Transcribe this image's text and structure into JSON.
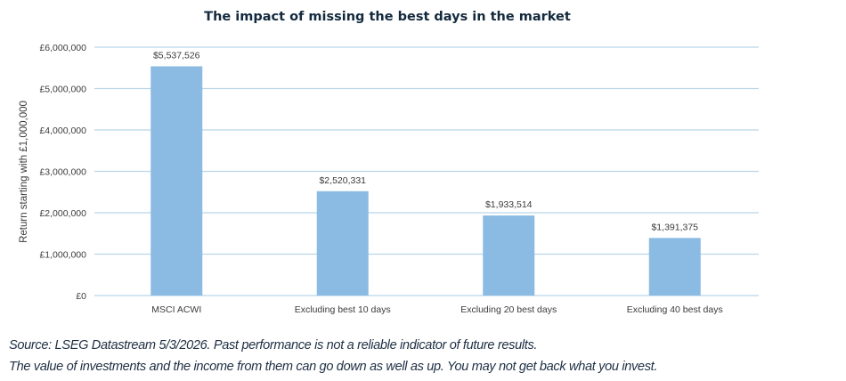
{
  "chart_data": {
    "type": "bar",
    "title": "The impact of missing the best days in the market",
    "xlabel": "",
    "ylabel": "Return starting with £1,000,000",
    "ylim": [
      0,
      6000000
    ],
    "grid": true,
    "yticks": [
      0,
      1000000,
      2000000,
      3000000,
      4000000,
      5000000,
      6000000
    ],
    "ytick_labels": [
      "£0",
      "£1,000,000",
      "£2,000,000",
      "£3,000,000",
      "£4,000,000",
      "£5,000,000",
      "£6,000,000"
    ],
    "categories": [
      "MSCI ACWI",
      "Excluding best 10 days",
      "Excluding 20 best days",
      "Excluding 40 best days"
    ],
    "values": [
      5537526,
      2520331,
      1933514,
      1391375
    ],
    "data_labels": [
      "$5,537,526",
      "$2,520,331",
      "$1,933,514",
      "$1,391,375"
    ],
    "colors": {
      "bar": "#8bbbe2",
      "grid": "#b9d5e8",
      "title": "#13293d",
      "text": "#3b3b3b"
    }
  },
  "footnotes": [
    "Source: LSEG Datastream 5/3/2026. Past performance is not a reliable indicator of future results.",
    "The value of investments and the income from them can go down as well as up. You may not get back what you invest."
  ]
}
